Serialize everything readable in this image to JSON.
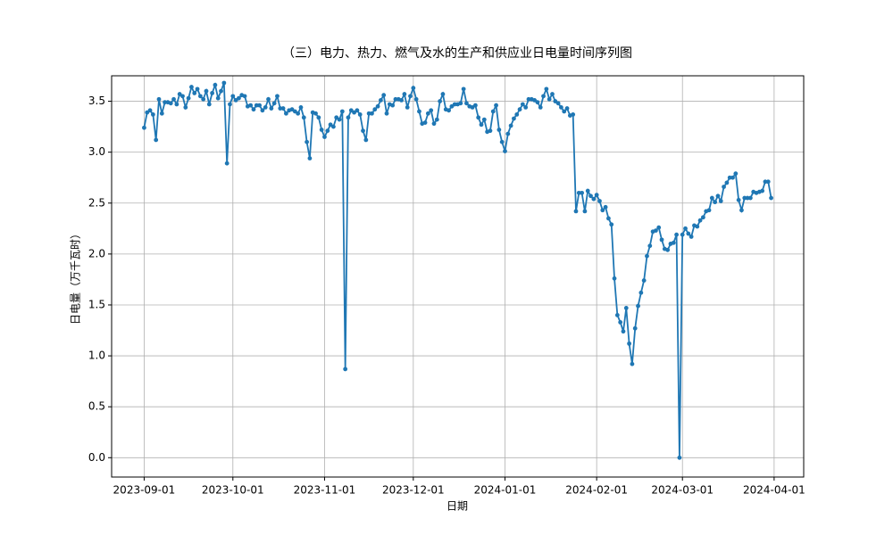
{
  "chart_data": {
    "type": "line",
    "title": "（三）电力、热力、燃气及水的生产和供应业日电量时间序列图",
    "x_label": "日期",
    "y_label": "日电量（万千瓦时）",
    "x": [
      "2023-09-01",
      "2023-09-02",
      "2023-09-03",
      "2023-09-04",
      "2023-09-05",
      "2023-09-06",
      "2023-09-07",
      "2023-09-08",
      "2023-09-09",
      "2023-09-10",
      "2023-09-11",
      "2023-09-12",
      "2023-09-13",
      "2023-09-14",
      "2023-09-15",
      "2023-09-16",
      "2023-09-17",
      "2023-09-18",
      "2023-09-19",
      "2023-09-20",
      "2023-09-21",
      "2023-09-22",
      "2023-09-23",
      "2023-09-24",
      "2023-09-25",
      "2023-09-26",
      "2023-09-27",
      "2023-09-28",
      "2023-09-29",
      "2023-09-30",
      "2023-10-01",
      "2023-10-02",
      "2023-10-03",
      "2023-10-04",
      "2023-10-05",
      "2023-10-06",
      "2023-10-07",
      "2023-10-08",
      "2023-10-09",
      "2023-10-10",
      "2023-10-11",
      "2023-10-12",
      "2023-10-13",
      "2023-10-14",
      "2023-10-15",
      "2023-10-16",
      "2023-10-17",
      "2023-10-18",
      "2023-10-19",
      "2023-10-20",
      "2023-10-21",
      "2023-10-22",
      "2023-10-23",
      "2023-10-24",
      "2023-10-25",
      "2023-10-26",
      "2023-10-27",
      "2023-10-28",
      "2023-10-29",
      "2023-10-30",
      "2023-10-31",
      "2023-11-01",
      "2023-11-02",
      "2023-11-03",
      "2023-11-04",
      "2023-11-05",
      "2023-11-06",
      "2023-11-07",
      "2023-11-08",
      "2023-11-09",
      "2023-11-10",
      "2023-11-11",
      "2023-11-12",
      "2023-11-13",
      "2023-11-14",
      "2023-11-15",
      "2023-11-16",
      "2023-11-17",
      "2023-11-18",
      "2023-11-19",
      "2023-11-20",
      "2023-11-21",
      "2023-11-22",
      "2023-11-23",
      "2023-11-24",
      "2023-11-25",
      "2023-11-26",
      "2023-11-27",
      "2023-11-28",
      "2023-11-29",
      "2023-11-30",
      "2023-12-01",
      "2023-12-02",
      "2023-12-03",
      "2023-12-04",
      "2023-12-05",
      "2023-12-06",
      "2023-12-07",
      "2023-12-08",
      "2023-12-09",
      "2023-12-10",
      "2023-12-11",
      "2023-12-12",
      "2023-12-13",
      "2023-12-14",
      "2023-12-15",
      "2023-12-16",
      "2023-12-17",
      "2023-12-18",
      "2023-12-19",
      "2023-12-20",
      "2023-12-21",
      "2023-12-22",
      "2023-12-23",
      "2023-12-24",
      "2023-12-25",
      "2023-12-26",
      "2023-12-27",
      "2023-12-28",
      "2023-12-29",
      "2023-12-30",
      "2023-12-31",
      "2024-01-01",
      "2024-01-02",
      "2024-01-03",
      "2024-01-04",
      "2024-01-05",
      "2024-01-06",
      "2024-01-07",
      "2024-01-08",
      "2024-01-09",
      "2024-01-10",
      "2024-01-11",
      "2024-01-12",
      "2024-01-13",
      "2024-01-14",
      "2024-01-15",
      "2024-01-16",
      "2024-01-17",
      "2024-01-18",
      "2024-01-19",
      "2024-01-20",
      "2024-01-21",
      "2024-01-22",
      "2024-01-23",
      "2024-01-24",
      "2024-01-25",
      "2024-01-26",
      "2024-01-27",
      "2024-01-28",
      "2024-01-29",
      "2024-01-30",
      "2024-01-31",
      "2024-02-01",
      "2024-02-02",
      "2024-02-03",
      "2024-02-04",
      "2024-02-05",
      "2024-02-06",
      "2024-02-07",
      "2024-02-08",
      "2024-02-09",
      "2024-02-10",
      "2024-02-11",
      "2024-02-12",
      "2024-02-13",
      "2024-02-14",
      "2024-02-15",
      "2024-02-16",
      "2024-02-17",
      "2024-02-18",
      "2024-02-19",
      "2024-02-20",
      "2024-02-21",
      "2024-02-22",
      "2024-02-23",
      "2024-02-24",
      "2024-02-25",
      "2024-02-26",
      "2024-02-27",
      "2024-02-28",
      "2024-02-29",
      "2024-03-01",
      "2024-03-02",
      "2024-03-03",
      "2024-03-04",
      "2024-03-05",
      "2024-03-06",
      "2024-03-07",
      "2024-03-08",
      "2024-03-09",
      "2024-03-10",
      "2024-03-11",
      "2024-03-12",
      "2024-03-13",
      "2024-03-14",
      "2024-03-15",
      "2024-03-16",
      "2024-03-17",
      "2024-03-18",
      "2024-03-19",
      "2024-03-20",
      "2024-03-21",
      "2024-03-22",
      "2024-03-23",
      "2024-03-24",
      "2024-03-25",
      "2024-03-26",
      "2024-03-27",
      "2024-03-28",
      "2024-03-29",
      "2024-03-30",
      "2024-03-31"
    ],
    "series": [
      {
        "color": "#1f77b4",
        "values": [
          3.24,
          3.39,
          3.41,
          3.37,
          3.12,
          3.52,
          3.38,
          3.49,
          3.49,
          3.48,
          3.52,
          3.47,
          3.57,
          3.55,
          3.44,
          3.53,
          3.64,
          3.58,
          3.62,
          3.55,
          3.52,
          3.6,
          3.47,
          3.58,
          3.66,
          3.53,
          3.6,
          3.68,
          2.89,
          3.47,
          3.55,
          3.51,
          3.53,
          3.56,
          3.55,
          3.45,
          3.46,
          3.42,
          3.46,
          3.46,
          3.41,
          3.44,
          3.52,
          3.43,
          3.48,
          3.55,
          3.43,
          3.43,
          3.38,
          3.41,
          3.42,
          3.4,
          3.38,
          3.44,
          3.34,
          3.1,
          2.94,
          3.39,
          3.38,
          3.34,
          3.22,
          3.15,
          3.21,
          3.27,
          3.25,
          3.34,
          3.32,
          3.4,
          0.87,
          3.34,
          3.41,
          3.39,
          3.41,
          3.37,
          3.21,
          3.12,
          3.38,
          3.38,
          3.42,
          3.45,
          3.51,
          3.56,
          3.38,
          3.47,
          3.46,
          3.52,
          3.52,
          3.51,
          3.57,
          3.44,
          3.55,
          3.63,
          3.52,
          3.4,
          3.28,
          3.29,
          3.38,
          3.41,
          3.28,
          3.32,
          3.5,
          3.57,
          3.42,
          3.41,
          3.45,
          3.47,
          3.47,
          3.48,
          3.62,
          3.48,
          3.45,
          3.44,
          3.46,
          3.34,
          3.27,
          3.32,
          3.2,
          3.21,
          3.4,
          3.46,
          3.22,
          3.1,
          3.01,
          3.18,
          3.26,
          3.33,
          3.37,
          3.42,
          3.47,
          3.44,
          3.52,
          3.52,
          3.51,
          3.49,
          3.44,
          3.55,
          3.62,
          3.52,
          3.57,
          3.5,
          3.48,
          3.44,
          3.4,
          3.43,
          3.36,
          3.37,
          2.42,
          2.6,
          2.6,
          2.42,
          2.62,
          2.57,
          2.54,
          2.58,
          2.52,
          2.43,
          2.46,
          2.35,
          2.29,
          1.76,
          1.4,
          1.33,
          1.24,
          1.47,
          1.12,
          0.92,
          1.27,
          1.49,
          1.62,
          1.74,
          1.98,
          2.08,
          2.22,
          2.23,
          2.26,
          2.14,
          2.05,
          2.04,
          2.1,
          2.11,
          2.19,
          0.0,
          2.19,
          2.25,
          2.2,
          2.17,
          2.28,
          2.27,
          2.33,
          2.36,
          2.42,
          2.43,
          2.55,
          2.51,
          2.57,
          2.52,
          2.66,
          2.7,
          2.75,
          2.75,
          2.79,
          2.53,
          2.43,
          2.55,
          2.55,
          2.55,
          2.61,
          2.6,
          2.61,
          2.62,
          2.71,
          2.71,
          2.55
        ]
      }
    ],
    "xlim": [
      "2023-08-21",
      "2024-04-11"
    ],
    "xticks": [
      "2023-09-01",
      "2023-10-01",
      "2023-11-01",
      "2023-12-01",
      "2024-01-01",
      "2024-02-01",
      "2024-03-01",
      "2024-04-01"
    ],
    "ylim": [
      -0.19,
      3.75
    ],
    "yticks": [
      {
        "value": 0,
        "label": "0.0"
      },
      {
        "value": 0.5,
        "label": "0.5"
      },
      {
        "value": 1,
        "label": "1.0"
      },
      {
        "value": 1.5,
        "label": "1.5"
      },
      {
        "value": 2,
        "label": "2.0"
      },
      {
        "value": 2.5,
        "label": "2.5"
      },
      {
        "value": 3,
        "label": "3.0"
      },
      {
        "value": 3.5,
        "label": "3.5"
      }
    ],
    "grid": true
  }
}
